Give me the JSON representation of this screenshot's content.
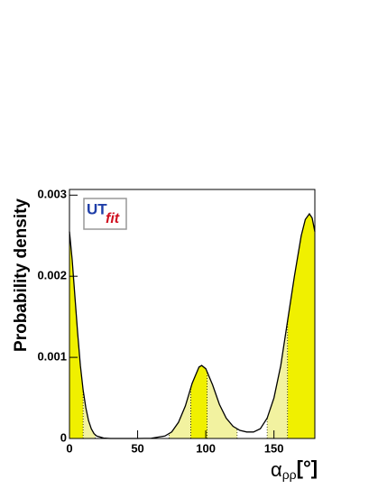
{
  "chart_data": {
    "type": "line",
    "y_label": "Probability density",
    "x_label": "α",
    "x_label_sub": "ρρ",
    "x_label_unit": "[°]",
    "logo": {
      "left": "UT",
      "right": "fit"
    },
    "x": [
      0,
      2,
      4,
      6,
      8,
      10,
      12,
      14,
      16,
      18,
      20,
      25,
      30,
      40,
      50,
      60,
      70,
      75,
      80,
      85,
      90,
      95,
      97,
      100,
      105,
      110,
      115,
      120,
      125,
      130,
      135,
      140,
      145,
      150,
      155,
      160,
      165,
      170,
      173,
      176,
      178,
      180
    ],
    "series": [
      {
        "color": "#000000",
        "values": [
          0.00255,
          0.0022,
          0.00175,
          0.0013,
          0.0009,
          0.0006,
          0.00038,
          0.00022,
          0.00012,
          6e-05,
          3e-05,
          5e-06,
          0,
          0,
          0,
          3e-06,
          3e-05,
          8e-05,
          0.0002,
          0.0004,
          0.00068,
          0.00088,
          0.0009,
          0.00086,
          0.00066,
          0.00042,
          0.00025,
          0.00015,
          0.0001,
          8e-05,
          8e-05,
          0.00012,
          0.00025,
          0.0005,
          0.0009,
          0.00145,
          0.002,
          0.0025,
          0.0027,
          0.00277,
          0.00272,
          0.00255
        ]
      }
    ],
    "bands": [
      {
        "range": [
          10,
          19
        ],
        "color": "#f2f2a0"
      },
      {
        "range": [
          73,
          89
        ],
        "color": "#f2f2a0"
      },
      {
        "range": [
          101,
          123
        ],
        "color": "#f2f2a0"
      },
      {
        "range": [
          145,
          160
        ],
        "color": "#f2f2a0"
      },
      {
        "range": [
          0,
          10
        ],
        "color": "#f0f000"
      },
      {
        "range": [
          89,
          101
        ],
        "color": "#f0f000"
      },
      {
        "range": [
          160,
          180
        ],
        "color": "#f0f000"
      }
    ],
    "xlim": [
      0,
      180
    ],
    "xticks": [
      0,
      50,
      100,
      150
    ],
    "ylim": [
      0,
      0.00307
    ],
    "yticks": [
      0,
      0.001,
      0.002,
      0.003
    ]
  }
}
